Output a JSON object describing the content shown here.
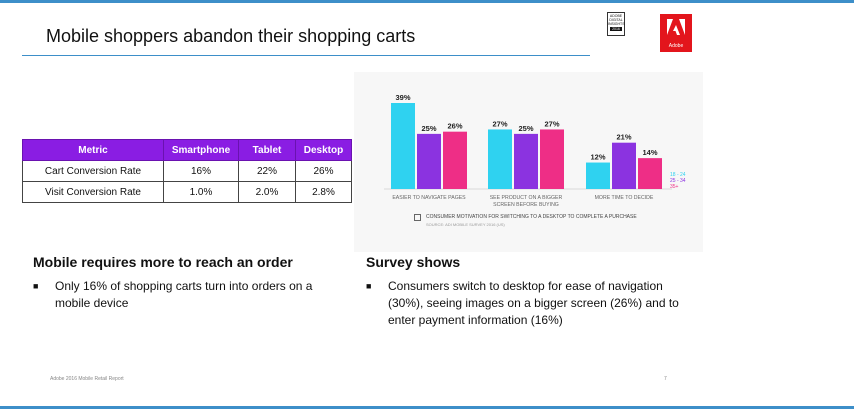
{
  "slide": {
    "title": "Mobile shoppers abandon their shopping carts",
    "footer": "Adobe 2016 Mobile Retail Report",
    "page_number": "7"
  },
  "badges": {
    "insights": [
      "ADOBE",
      "DIGITAL",
      "INSIGHTS"
    ],
    "insights_year": "2016",
    "adobe_logo_text": "Adobe"
  },
  "table": {
    "headers": [
      "Metric",
      "Smartphone",
      "Tablet",
      "Desktop"
    ],
    "rows": [
      [
        "Cart Conversion Rate",
        "16%",
        "22%",
        "26%"
      ],
      [
        "Visit Conversion Rate",
        "1.0%",
        "2.0%",
        "2.8%"
      ]
    ]
  },
  "left_section": {
    "heading": "Mobile requires more to reach an order",
    "bullet": "Only 16% of shopping carts turn into orders on a mobile device"
  },
  "right_section": {
    "heading": "Survey shows",
    "bullet": "Consumers switch to desktop for ease of navigation (30%), seeing images on a bigger screen (26%) and to enter payment information (16%)"
  },
  "chart_data": {
    "type": "bar",
    "categories": [
      "EASIER TO NAVIGATE PAGES",
      "SEE PRODUCT ON A BIGGER SCREEN BEFORE BUYING",
      "MORE TIME TO DECIDE"
    ],
    "category_lines": [
      [
        "EASIER TO NAVIGATE PAGES"
      ],
      [
        "SEE PRODUCT ON A BIGGER",
        "SCREEN BEFORE BUYING"
      ],
      [
        "MORE TIME TO DECIDE"
      ]
    ],
    "series": [
      {
        "name": "18 - 24",
        "color": "#2fd2f0",
        "values": [
          39,
          27,
          12
        ],
        "labels": [
          "39%",
          "27%",
          "12%"
        ]
      },
      {
        "name": "25 - 34",
        "color": "#8b33e0",
        "values": [
          25,
          25,
          21
        ],
        "labels": [
          "25%",
          "25%",
          "21%"
        ]
      },
      {
        "name": "35+",
        "color": "#ee2e86",
        "values": [
          26,
          27,
          14
        ],
        "labels": [
          "26%",
          "27%",
          "14%"
        ]
      }
    ],
    "ylim": [
      0,
      39
    ],
    "caption": "CONSUMER MOTIVATION FOR SWITCHING TO A DESKTOP TO COMPLETE A PURCHASE",
    "source": "SOURCE: ADI MOBILE SURVEY 2016 (US)",
    "legend_position": "right"
  }
}
